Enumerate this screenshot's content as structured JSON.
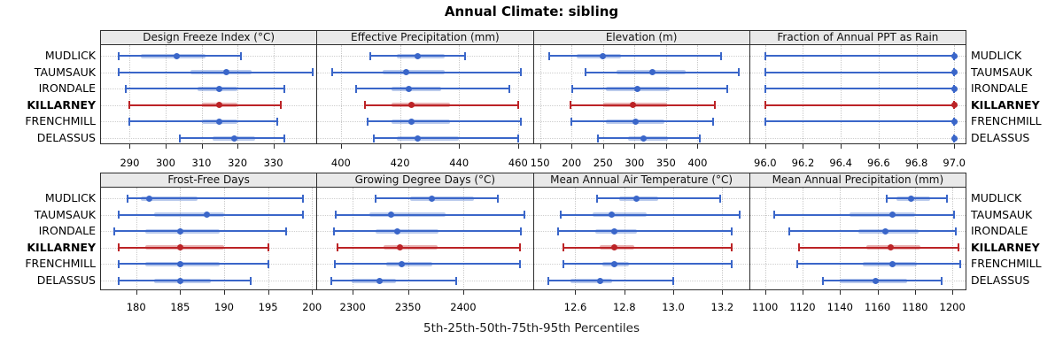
{
  "title": "Annual Climate: sibling",
  "caption": "5th-25th-50th-75th-95th Percentiles",
  "sites": [
    "MUDLICK",
    "TAUMSAUK",
    "IRONDALE",
    "KILLARNEY",
    "FRENCHMILL",
    "DELASSUS"
  ],
  "highlight_site": "KILLARNEY",
  "percentiles": [
    "5th",
    "25th",
    "50th",
    "75th",
    "95th"
  ],
  "colors": {
    "series_line": "#3a66c9",
    "series_band": "rgba(58,102,201,0.35)",
    "highlight_line": "#bc2326",
    "highlight_band": "rgba(188,35,38,0.35)",
    "grid": "#c9c9c9",
    "panel_border": "#2e2e2e",
    "header_bg": "#e9e9e9"
  },
  "chart_data": {
    "type": "dotplot-intervals",
    "layout": "2 rows x 4 columns of panels, shared site rows",
    "note": "values are [p5, p25, p50, p75, p95] percentiles per site",
    "panels": [
      {
        "title": "Design Freeze Index (°C)",
        "xlim": [
          282,
          342
        ],
        "ticks": [
          290,
          300,
          310,
          320,
          330
        ],
        "tick_labels": [
          "290",
          "300",
          "310",
          "320",
          "330"
        ],
        "values": {
          "MUDLICK": [
            287,
            293,
            303,
            311,
            321
          ],
          "TAUMSAUK": [
            287,
            307,
            317,
            324,
            341
          ],
          "IRONDALE": [
            289,
            309,
            315,
            320,
            333
          ],
          "KILLARNEY": [
            290,
            310,
            315,
            320,
            332
          ],
          "FRENCHMILL": [
            290,
            310,
            315,
            320,
            331
          ],
          "DELASSUS": [
            304,
            313,
            319,
            325,
            333
          ]
        }
      },
      {
        "title": "Effective Precipitation (mm)",
        "xlim": [
          392,
          465
        ],
        "ticks": [
          400,
          420,
          440,
          460
        ],
        "tick_labels": [
          "400",
          "420",
          "440",
          "460"
        ],
        "values": {
          "MUDLICK": [
            410,
            419,
            426,
            435,
            442
          ],
          "TAUMSAUK": [
            397,
            414,
            422,
            435,
            461
          ],
          "IRONDALE": [
            405,
            417,
            423,
            434,
            457
          ],
          "KILLARNEY": [
            408,
            417,
            424,
            437,
            460
          ],
          "FRENCHMILL": [
            409,
            417,
            424,
            437,
            461
          ],
          "DELASSUS": [
            411,
            419,
            426,
            440,
            460
          ]
        }
      },
      {
        "title": "Elevation (m)",
        "xlim": [
          140,
          482
        ],
        "ticks": [
          150,
          200,
          250,
          300,
          350,
          400
        ],
        "tick_labels": [
          "150",
          "200",
          "250",
          "300",
          "350",
          "400"
        ],
        "values": {
          "MUDLICK": [
            165,
            208,
            250,
            278,
            437
          ],
          "TAUMSAUK": [
            222,
            272,
            329,
            381,
            465
          ],
          "IRONDALE": [
            201,
            254,
            304,
            356,
            447
          ],
          "KILLARNEY": [
            198,
            250,
            298,
            352,
            427
          ],
          "FRENCHMILL": [
            200,
            255,
            302,
            348,
            425
          ],
          "DELASSUS": [
            242,
            290,
            315,
            353,
            404
          ]
        }
      },
      {
        "title": "Fraction of Annual PPT as Rain",
        "xlim": [
          95.92,
          97.06
        ],
        "ticks": [
          96.0,
          96.2,
          96.4,
          96.6,
          96.8,
          97.0
        ],
        "tick_labels": [
          "96.0",
          "96.2",
          "96.4",
          "96.6",
          "96.8",
          "97.0"
        ],
        "values": {
          "MUDLICK": [
            96,
            97,
            97,
            97,
            97
          ],
          "TAUMSAUK": [
            96,
            97,
            97,
            97,
            97
          ],
          "IRONDALE": [
            96,
            97,
            97,
            97,
            97
          ],
          "KILLARNEY": [
            96,
            97,
            97,
            97,
            97
          ],
          "FRENCHMILL": [
            96,
            97,
            97,
            97,
            97
          ],
          "DELASSUS": [
            97,
            97,
            97,
            97,
            97
          ]
        }
      },
      {
        "title": "Frost-Free Days",
        "xlim": [
          176,
          200.5
        ],
        "ticks": [
          180,
          185,
          190,
          195,
          200
        ],
        "tick_labels": [
          "180",
          "185",
          "190",
          "195",
          "200"
        ],
        "values": {
          "MUDLICK": [
            179,
            180.5,
            181.5,
            187,
            199
          ],
          "TAUMSAUK": [
            178,
            182,
            188,
            190,
            199
          ],
          "IRONDALE": [
            177.5,
            181,
            185,
            189.5,
            197
          ],
          "KILLARNEY": [
            178,
            181,
            185,
            190,
            195
          ],
          "FRENCHMILL": [
            178,
            181,
            185,
            189.5,
            195
          ],
          "DELASSUS": [
            178,
            182,
            185,
            188.5,
            193
          ]
        }
      },
      {
        "title": "Growing Degree Days (°C)",
        "xlim": [
          2268,
          2463
        ],
        "ticks": [
          2300,
          2350,
          2400
        ],
        "tick_labels": [
          "2300",
          "2350",
          "2400"
        ],
        "values": {
          "MUDLICK": [
            2321,
            2352,
            2372,
            2410,
            2431
          ],
          "TAUMSAUK": [
            2285,
            2315,
            2335,
            2384,
            2455
          ],
          "IRONDALE": [
            2283,
            2321,
            2340,
            2378,
            2452
          ],
          "KILLARNEY": [
            2286,
            2328,
            2343,
            2377,
            2451
          ],
          "FRENCHMILL": [
            2284,
            2330,
            2344,
            2372,
            2451
          ],
          "DELASSUS": [
            2281,
            2299,
            2324,
            2339,
            2394
          ]
        }
      },
      {
        "title": "Mean Annual Air Temperature (°C)",
        "xlim": [
          12.43,
          13.31
        ],
        "ticks": [
          12.6,
          12.8,
          13.0,
          13.2
        ],
        "tick_labels": [
          "12.6",
          "12.8",
          "13.0",
          "13.2"
        ],
        "values": {
          "MUDLICK": [
            12.69,
            12.78,
            12.85,
            12.94,
            13.19
          ],
          "TAUMSAUK": [
            12.54,
            12.67,
            12.75,
            12.89,
            13.27
          ],
          "IRONDALE": [
            12.53,
            12.68,
            12.76,
            12.85,
            13.24
          ],
          "KILLARNEY": [
            12.55,
            12.7,
            12.76,
            12.84,
            13.24
          ],
          "FRENCHMILL": [
            12.55,
            12.71,
            12.76,
            12.82,
            13.24
          ],
          "DELASSUS": [
            12.49,
            12.58,
            12.7,
            12.75,
            13.0
          ]
        }
      },
      {
        "title": "Mean Annual Precipitation (mm)",
        "xlim": [
          1092,
          1207
        ],
        "ticks": [
          1100,
          1120,
          1140,
          1160,
          1180,
          1200
        ],
        "tick_labels": [
          "1100",
          "1120",
          "1140",
          "1160",
          "1180",
          "1200"
        ],
        "values": {
          "MUDLICK": [
            1165,
            1170,
            1178,
            1188,
            1197
          ],
          "TAUMSAUK": [
            1105,
            1145,
            1168,
            1180,
            1201
          ],
          "IRONDALE": [
            1113,
            1150,
            1164,
            1182,
            1202
          ],
          "KILLARNEY": [
            1118,
            1154,
            1167,
            1183,
            1203
          ],
          "FRENCHMILL": [
            1117,
            1152,
            1168,
            1181,
            1204
          ],
          "DELASSUS": [
            1131,
            1140,
            1159,
            1176,
            1194
          ]
        }
      }
    ]
  }
}
